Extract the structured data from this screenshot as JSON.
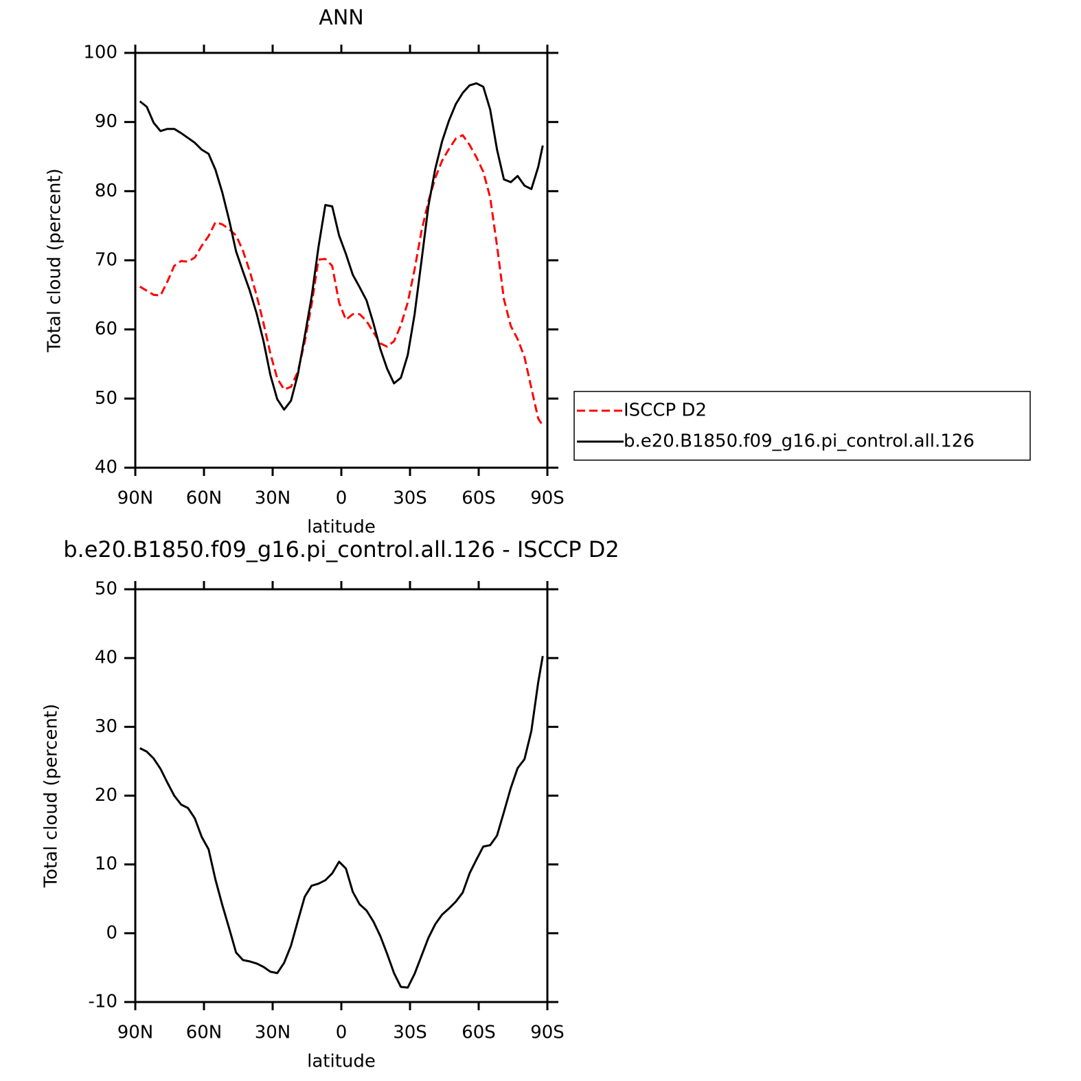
{
  "chart_data": [
    {
      "type": "line",
      "title": "ANN",
      "xlabel": "latitude",
      "ylabel": "Total cloud (percent)",
      "x": [
        88,
        85,
        82,
        79,
        76,
        73,
        70,
        67,
        64,
        61,
        58,
        55,
        52,
        49,
        46,
        43,
        40,
        37,
        34,
        31,
        28,
        25,
        22,
        19,
        16,
        13,
        10,
        7,
        4,
        1,
        -2,
        -5,
        -8,
        -11,
        -14,
        -17,
        -20,
        -23,
        -26,
        -29,
        -32,
        -35,
        -38,
        -41,
        -44,
        -47,
        -50,
        -53,
        -56,
        -59,
        -62,
        -65,
        -68,
        -71,
        -74,
        -77,
        -80,
        -83,
        -86,
        -88
      ],
      "series": [
        {
          "name": "ISCCP D2",
          "color": "#ff0000",
          "dashed": true,
          "values": [
            66.2,
            65.6,
            65.0,
            64.9,
            66.9,
            69.2,
            69.9,
            69.8,
            70.4,
            72.1,
            73.5,
            75.5,
            75.2,
            74.5,
            73.6,
            71.4,
            68.4,
            64.9,
            60.9,
            56.5,
            52.9,
            51.3,
            51.7,
            53.9,
            58.2,
            63.6,
            70.1,
            70.2,
            69.2,
            63.9,
            61.4,
            62.2,
            62.2,
            61.2,
            59.6,
            58.0,
            57.5,
            58.3,
            60.6,
            63.9,
            68.7,
            74.2,
            78.5,
            81.9,
            84.4,
            86.1,
            87.6,
            88.1,
            86.7,
            84.9,
            82.8,
            79.1,
            72.1,
            64.4,
            60.5,
            58.6,
            56.0,
            51.5,
            47.1,
            46.1
          ]
        },
        {
          "name": "b.e20.B1850.f09_g16.pi_control.all.126",
          "color": "#000000",
          "dashed": false,
          "values": [
            93.0,
            92.2,
            89.9,
            88.7,
            89.0,
            89.0,
            88.4,
            87.7,
            87.0,
            86.0,
            85.4,
            83.1,
            79.8,
            75.8,
            71.3,
            68.4,
            65.6,
            62.3,
            58.3,
            53.4,
            49.9,
            48.4,
            49.7,
            53.5,
            59.0,
            64.7,
            71.9,
            78.0,
            77.8,
            73.6,
            70.9,
            67.9,
            66.1,
            64.2,
            60.9,
            57.2,
            54.3,
            52.2,
            53.0,
            56.3,
            62.2,
            69.9,
            77.8,
            83.2,
            87.2,
            90.2,
            92.6,
            94.2,
            95.3,
            95.6,
            95.1,
            91.8,
            86.0,
            81.7,
            81.3,
            82.2,
            80.8,
            80.3,
            83.5,
            86.6
          ]
        }
      ],
      "xlim": [
        90,
        -90
      ],
      "xticks": [
        {
          "value": 90,
          "label": "90N"
        },
        {
          "value": 60,
          "label": "60N"
        },
        {
          "value": 30,
          "label": "30N"
        },
        0,
        {
          "value": -30,
          "label": "30S"
        },
        {
          "value": -60,
          "label": "60S"
        },
        {
          "value": -90,
          "label": "90S"
        }
      ],
      "ylim": [
        40,
        100
      ],
      "yticks": [
        40,
        50,
        60,
        70,
        80,
        90,
        100
      ],
      "legend": "right"
    },
    {
      "type": "line",
      "title": "b.e20.B1850.f09_g16.pi_control.all.126 - ISCCP D2",
      "xlabel": "latitude",
      "ylabel": "Total cloud (percent)",
      "x": [
        88,
        85,
        82,
        79,
        76,
        73,
        70,
        67,
        64,
        61,
        58,
        55,
        52,
        49,
        46,
        43,
        40,
        37,
        34,
        31,
        28,
        25,
        22,
        19,
        16,
        13,
        10,
        7,
        4,
        1,
        -2,
        -5,
        -8,
        -11,
        -14,
        -17,
        -20,
        -23,
        -26,
        -29,
        -32,
        -35,
        -38,
        -41,
        -44,
        -47,
        -50,
        -53,
        -56,
        -59,
        -62,
        -65,
        -68,
        -71,
        -74,
        -77,
        -80,
        -83,
        -86,
        -88
      ],
      "values": [
        26.9,
        26.4,
        25.4,
        23.9,
        21.9,
        20.0,
        18.7,
        18.2,
        16.7,
        14.0,
        12.2,
        7.8,
        4.1,
        0.7,
        -2.8,
        -3.9,
        -4.1,
        -4.4,
        -4.9,
        -5.6,
        -5.8,
        -4.3,
        -1.8,
        1.8,
        5.3,
        6.9,
        7.2,
        7.7,
        8.7,
        10.4,
        9.4,
        6.0,
        4.2,
        3.3,
        1.7,
        -0.4,
        -3.0,
        -5.8,
        -7.8,
        -7.9,
        -5.9,
        -3.3,
        -0.7,
        1.3,
        2.7,
        3.6,
        4.6,
        5.9,
        8.7,
        10.7,
        12.6,
        12.8,
        14.2,
        17.6,
        21.1,
        24.0,
        25.3,
        29.4,
        36.5,
        40.3
      ],
      "color": "#000000",
      "xlim": [
        90,
        -90
      ],
      "xticks": [
        {
          "value": 90,
          "label": "90N"
        },
        {
          "value": 60,
          "label": "60N"
        },
        {
          "value": 30,
          "label": "30N"
        },
        0,
        {
          "value": -30,
          "label": "30S"
        },
        {
          "value": -60,
          "label": "60S"
        },
        {
          "value": -90,
          "label": "90S"
        }
      ],
      "ylim": [
        -10,
        50
      ],
      "yticks": [
        -10,
        0,
        10,
        20,
        30,
        40,
        50
      ]
    }
  ]
}
